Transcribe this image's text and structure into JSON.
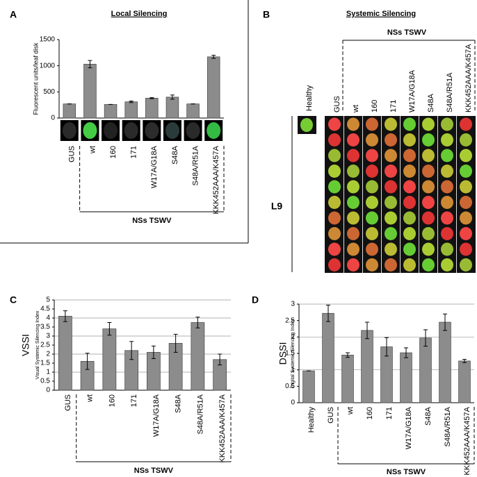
{
  "chart_data": [
    {
      "type": "bar",
      "panel": "A",
      "title": "Local Silencing",
      "ylabel": "Fluorescent units/leaf disk",
      "categories": [
        "GUS",
        "wt",
        "160",
        "171",
        "W17A/G18A",
        "S48A",
        "S48A/R51A",
        "KKK452AAA/K457A"
      ],
      "values": [
        270,
        1030,
        260,
        310,
        380,
        400,
        270,
        1170
      ],
      "errors": [
        0,
        70,
        0,
        15,
        10,
        40,
        0,
        30
      ],
      "color": "#8c8c8c",
      "ylim": [
        0,
        1500
      ],
      "yticks": [
        0,
        500,
        1000,
        1500
      ],
      "grid": false,
      "group_label": "NSs TSWV"
    },
    {
      "type": "bar",
      "panel": "C",
      "ylabel": "VSSI",
      "ylabel_sub": "Visual Systemic Silencing Index",
      "categories": [
        "GUS",
        "wt",
        "160",
        "171",
        "W17A/G18A",
        "S48A",
        "S48A/R51A",
        "KKK452AAA/K457A"
      ],
      "values": [
        4.1,
        1.6,
        3.4,
        2.2,
        2.1,
        2.6,
        3.75,
        1.7
      ],
      "errors": [
        0.3,
        0.45,
        0.35,
        0.5,
        0.35,
        0.5,
        0.3,
        0.3
      ],
      "color": "#8c8c8c",
      "ylim": [
        0,
        5
      ],
      "yticks": [
        0,
        0.5,
        1,
        1.5,
        2,
        2.5,
        3,
        3.5,
        4,
        4.5,
        5
      ],
      "grid": true,
      "group_label": "NSs TSWV"
    },
    {
      "type": "bar",
      "panel": "D",
      "ylabel": "DSSI",
      "ylabel_sub": "Digital Systemic Silencing Index",
      "categories": [
        "Healthy",
        "GUS",
        "wt",
        "160",
        "171",
        "W17A/G18A",
        "S48A",
        "S48A/R51A",
        "KKK452AAA/K457A"
      ],
      "values": [
        0.97,
        2.72,
        1.45,
        2.2,
        1.7,
        1.52,
        1.97,
        2.45,
        1.27
      ],
      "errors": [
        0,
        0.25,
        0.07,
        0.25,
        0.28,
        0.15,
        0.25,
        0.25,
        0.05
      ],
      "color": "#8c8c8c",
      "ylim": [
        0,
        3
      ],
      "yticks": [
        0,
        0.5,
        1,
        1.5,
        2,
        2.5,
        3
      ],
      "grid": true,
      "group_label": "NSs TSWV"
    }
  ],
  "panel_b": {
    "panel": "B",
    "title": "Systemic Silencing",
    "group_label": "NSs TSWV",
    "columns": [
      "Healthy",
      "GUS",
      "wt",
      "160",
      "171",
      "W17A/G18A",
      "S48A",
      "S48A/R51A",
      "KKK452AAA/K457A"
    ],
    "row_label": "L9"
  }
}
